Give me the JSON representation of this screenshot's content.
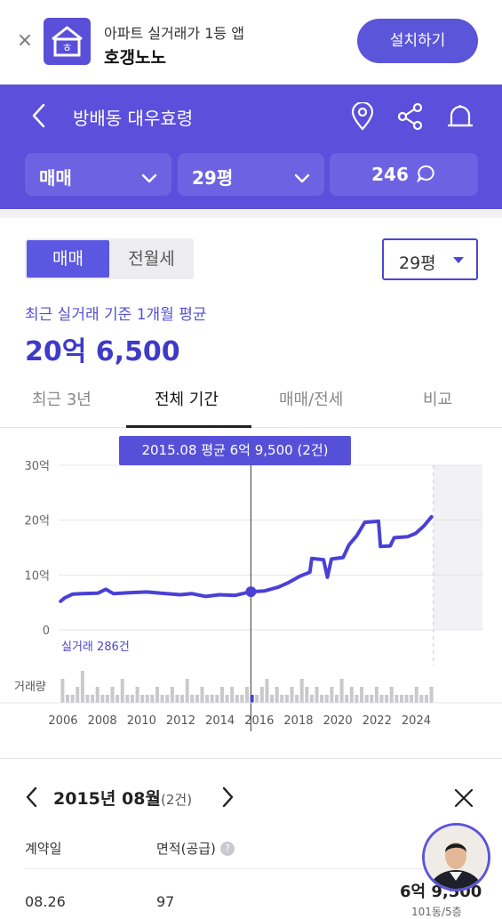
{
  "banner": {
    "subtitle": "아파트 실거래가 1등 앱",
    "app_name": "호갱노노",
    "install_label": "설치하기",
    "brand_color": "#5a4fd8"
  },
  "header": {
    "title": "방배동 대우효령",
    "trade_select": "매매",
    "size_select": "29평",
    "comment_count": "246",
    "background": "#5b4fdc"
  },
  "trade_toggle": {
    "options": [
      "매매",
      "전월세"
    ],
    "active": "매매"
  },
  "size_filter": "29평",
  "average": {
    "caption": "최근 실거래 기준 1개월 평균",
    "value": "20억 6,500"
  },
  "tabs": [
    "최근 3년",
    "전체 기간",
    "매매/전세",
    "비교"
  ],
  "active_tab": "전체 기간",
  "tooltip": "2015.08 평균 6억 9,500 (2건)",
  "chart_data": {
    "type": "line",
    "title": "",
    "y_tick_labels": [
      "30억",
      "20억",
      "10억",
      "0"
    ],
    "ylim": [
      0,
      30
    ],
    "x_tick_labels": [
      "2006",
      "2008",
      "2010",
      "2012",
      "2014",
      "2016",
      "2018",
      "2020",
      "2022",
      "2024"
    ],
    "trade_count_label": "실거래 286건",
    "volume_label": "거래량",
    "series": [
      {
        "values_year_price": [
          [
            2005.9,
            5.2
          ],
          [
            2006.1,
            5.8
          ],
          [
            2006.5,
            6.5
          ],
          [
            2007.0,
            6.6
          ],
          [
            2007.8,
            6.7
          ],
          [
            2008.2,
            7.4
          ],
          [
            2008.6,
            6.6
          ],
          [
            2009.5,
            6.8
          ],
          [
            2010.3,
            6.9
          ],
          [
            2011.0,
            6.7
          ],
          [
            2012.0,
            6.4
          ],
          [
            2012.6,
            6.6
          ],
          [
            2013.3,
            6.1
          ],
          [
            2014.0,
            6.4
          ],
          [
            2014.8,
            6.3
          ],
          [
            2015.6,
            6.95
          ],
          [
            2016.3,
            7.1
          ],
          [
            2017.0,
            7.8
          ],
          [
            2017.5,
            8.6
          ],
          [
            2018.1,
            9.8
          ],
          [
            2018.6,
            10.5
          ],
          [
            2018.7,
            13.0
          ],
          [
            2019.3,
            12.8
          ],
          [
            2019.5,
            9.6
          ],
          [
            2019.7,
            12.9
          ],
          [
            2020.3,
            13.2
          ],
          [
            2020.6,
            15.5
          ],
          [
            2021.0,
            17.2
          ],
          [
            2021.4,
            19.6
          ],
          [
            2022.1,
            19.8
          ],
          [
            2022.2,
            15.2
          ],
          [
            2022.7,
            15.3
          ],
          [
            2022.9,
            16.8
          ],
          [
            2023.6,
            17.0
          ],
          [
            2024.0,
            17.6
          ],
          [
            2024.4,
            18.9
          ],
          [
            2024.8,
            20.6
          ]
        ]
      }
    ],
    "highlight": {
      "year": 2015.6,
      "label": "2015.08",
      "value": 6.95
    },
    "volume": [
      3,
      1,
      1,
      2,
      4,
      1,
      1,
      2,
      1,
      1,
      2,
      1,
      3,
      1,
      1,
      2,
      1,
      1,
      1,
      2,
      1,
      1,
      2,
      1,
      1,
      3,
      1,
      1,
      2,
      1,
      1,
      1,
      2,
      1,
      2,
      1,
      1,
      2,
      1,
      1,
      2,
      3,
      1,
      2,
      1,
      1,
      2,
      1,
      3,
      2,
      1,
      2,
      1,
      1,
      2,
      1,
      3,
      1,
      2,
      1,
      2,
      1,
      1,
      2,
      1,
      1,
      2,
      1,
      1,
      1,
      1,
      2,
      1,
      1,
      2
    ],
    "series_color": "#4a40d6"
  },
  "detail": {
    "month_title": "2015년 08월",
    "count": "(2건)",
    "col_date": "계약일",
    "col_area": "면적(공급)",
    "help": "?",
    "row_date": "08.26",
    "row_area": "97",
    "row_price": "6억 9,500",
    "row_price_sub": "101동/5층"
  }
}
